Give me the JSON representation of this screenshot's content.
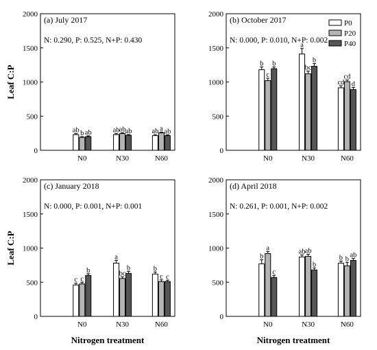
{
  "colors": {
    "P0": "#ffffff",
    "P20": "#b4b4b4",
    "P40": "#555555",
    "stroke": "#000000"
  },
  "legend": {
    "entries": [
      "P0",
      "P20",
      "P40"
    ],
    "placement": "top-right of panel (b)"
  },
  "xlabel": "Nitrogen treatment",
  "chart_data": [
    {
      "type": "bar",
      "panel": "(a) July 2017",
      "stats": "N: 0.290, P: 0.525, N+P: 0.430",
      "ylabel": "Leaf C:P",
      "ylim": [
        0,
        2000
      ],
      "yticks": [
        0,
        500,
        1000,
        1500,
        2000
      ],
      "categories": [
        "N0",
        "N30",
        "N60"
      ],
      "series": [
        {
          "name": "P0",
          "values": [
            230,
            230,
            215
          ],
          "errors": [
            15,
            15,
            15
          ],
          "letters": [
            "ab",
            "ab",
            "ab"
          ]
        },
        {
          "name": "P20",
          "values": [
            190,
            245,
            255
          ],
          "errors": [
            10,
            12,
            12
          ],
          "letters": [
            "b",
            "ab",
            "a"
          ]
        },
        {
          "name": "P40",
          "values": [
            200,
            220,
            215
          ],
          "errors": [
            12,
            12,
            12
          ],
          "letters": [
            "ab",
            "ab",
            "ab"
          ]
        }
      ]
    },
    {
      "type": "bar",
      "panel": "(b) October 2017",
      "stats": "N: 0.000, P: 0.010, N+P: 0.002",
      "ylabel": "",
      "ylim": [
        0,
        2000
      ],
      "yticks": [
        0,
        500,
        1000,
        1500,
        2000
      ],
      "categories": [
        "N0",
        "N30",
        "N60"
      ],
      "series": [
        {
          "name": "P0",
          "values": [
            1180,
            1410,
            915
          ],
          "errors": [
            40,
            80,
            30
          ],
          "letters": [
            "b",
            "a",
            "cd"
          ]
        },
        {
          "name": "P20",
          "values": [
            1020,
            1120,
            1005
          ],
          "errors": [
            35,
            40,
            25
          ],
          "letters": [
            "c",
            "bc",
            "cd"
          ]
        },
        {
          "name": "P40",
          "values": [
            1195,
            1230,
            890
          ],
          "errors": [
            25,
            40,
            30
          ],
          "letters": [
            "b",
            "b",
            "d"
          ]
        }
      ]
    },
    {
      "type": "bar",
      "panel": "(c) January 2018",
      "stats": "N: 0.000, P: 0.001, N+P: 0.001",
      "ylabel": "Leaf C:P",
      "ylim": [
        0,
        2000
      ],
      "yticks": [
        0,
        500,
        1000,
        1500,
        2000
      ],
      "categories": [
        "N0",
        "N30",
        "N60"
      ],
      "series": [
        {
          "name": "P0",
          "values": [
            460,
            780,
            620
          ],
          "errors": [
            25,
            40,
            30
          ],
          "letters": [
            "c",
            "a",
            "b"
          ]
        },
        {
          "name": "P20",
          "values": [
            475,
            555,
            510
          ],
          "errors": [
            25,
            25,
            25
          ],
          "letters": [
            "c",
            "bc",
            "c"
          ]
        },
        {
          "name": "P40",
          "values": [
            600,
            630,
            510
          ],
          "errors": [
            25,
            30,
            20
          ],
          "letters": [
            "b",
            "b",
            "c"
          ]
        }
      ]
    },
    {
      "type": "bar",
      "panel": "(d) April 2018",
      "stats": "N: 0.261, P: 0.001, N+P: 0.002",
      "ylabel": "",
      "ylim": [
        0,
        2000
      ],
      "yticks": [
        0,
        500,
        1000,
        1500,
        2000
      ],
      "categories": [
        "N0",
        "N30",
        "N60"
      ],
      "series": [
        {
          "name": "P0",
          "values": [
            770,
            870,
            780
          ],
          "errors": [
            60,
            30,
            30
          ],
          "letters": [
            "b",
            "ab",
            "b"
          ]
        },
        {
          "name": "P20",
          "values": [
            920,
            880,
            740
          ],
          "errors": [
            30,
            30,
            50
          ],
          "letters": [
            "a",
            "ab",
            "b"
          ]
        },
        {
          "name": "P40",
          "values": [
            570,
            680,
            820
          ],
          "errors": [
            30,
            30,
            30
          ],
          "letters": [
            "c",
            "b",
            "ab"
          ]
        }
      ]
    }
  ]
}
